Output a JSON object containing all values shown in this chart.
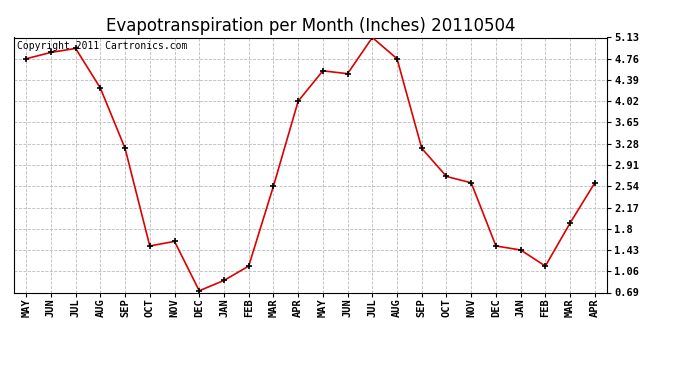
{
  "title": "Evapotranspiration per Month (Inches) 20110504",
  "copyright_text": "Copyright 2011 Cartronics.com",
  "months": [
    "MAY",
    "JUN",
    "JUL",
    "AUG",
    "SEP",
    "OCT",
    "NOV",
    "DEC",
    "JAN",
    "FEB",
    "MAR",
    "APR",
    "MAY",
    "JUN",
    "JUL",
    "AUG",
    "SEP",
    "OCT",
    "NOV",
    "DEC",
    "JAN",
    "FEB",
    "MAR",
    "APR"
  ],
  "values": [
    4.76,
    4.87,
    4.94,
    4.25,
    3.2,
    1.5,
    1.58,
    0.72,
    0.9,
    1.15,
    2.54,
    4.02,
    4.55,
    4.5,
    5.13,
    4.76,
    3.2,
    2.71,
    2.6,
    1.5,
    1.43,
    1.15,
    1.9,
    2.6
  ],
  "yticks": [
    0.69,
    1.06,
    1.43,
    1.8,
    2.17,
    2.54,
    2.91,
    3.28,
    3.65,
    4.02,
    4.39,
    4.76,
    5.13
  ],
  "ylim": [
    0.69,
    5.13
  ],
  "line_color": "#dd0000",
  "marker_color": "#000000",
  "background_color": "#ffffff",
  "grid_color": "#bbbbbb",
  "title_fontsize": 12,
  "copyright_fontsize": 7,
  "tick_fontsize": 7.5
}
